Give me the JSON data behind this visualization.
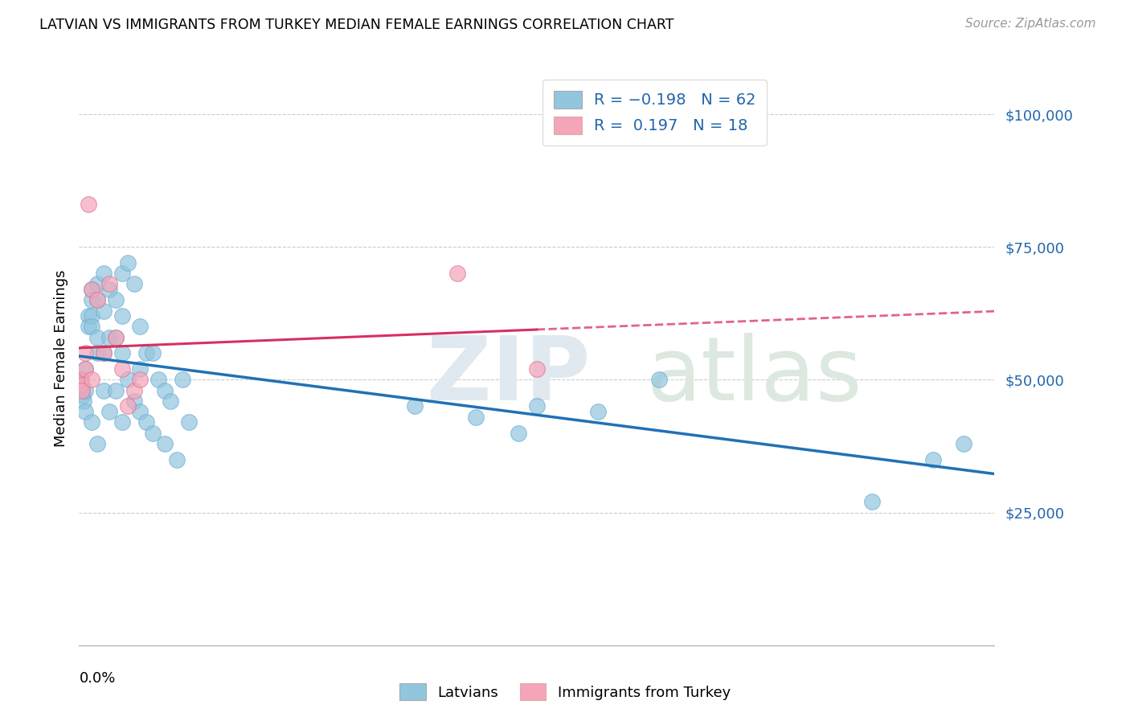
{
  "title": "LATVIAN VS IMMIGRANTS FROM TURKEY MEDIAN FEMALE EARNINGS CORRELATION CHART",
  "source": "Source: ZipAtlas.com",
  "ylabel": "Median Female Earnings",
  "y_ticks": [
    25000,
    50000,
    75000,
    100000
  ],
  "y_tick_labels": [
    "$25,000",
    "$50,000",
    "$75,000",
    "$100,000"
  ],
  "x_min": 0.0,
  "x_max": 0.15,
  "y_min": 0,
  "y_max": 108000,
  "latvian_color": "#92c5de",
  "latvian_edge": "#6baed6",
  "turkey_color": "#f4a5b8",
  "turkey_edge": "#e07090",
  "latvian_line_color": "#2171b5",
  "turkey_line_color": "#d63060",
  "latvian_R": -0.198,
  "latvian_N": 62,
  "turkey_R": 0.197,
  "turkey_N": 18,
  "legend_label_1": "Latvians",
  "legend_label_2": "Immigrants from Turkey",
  "latvian_x": [
    0.0002,
    0.0003,
    0.0004,
    0.0005,
    0.0006,
    0.0008,
    0.001,
    0.001,
    0.001,
    0.0015,
    0.0015,
    0.002,
    0.002,
    0.002,
    0.002,
    0.002,
    0.003,
    0.003,
    0.003,
    0.003,
    0.003,
    0.004,
    0.004,
    0.004,
    0.004,
    0.005,
    0.005,
    0.005,
    0.006,
    0.006,
    0.006,
    0.007,
    0.007,
    0.007,
    0.007,
    0.008,
    0.008,
    0.009,
    0.009,
    0.01,
    0.01,
    0.01,
    0.011,
    0.011,
    0.012,
    0.012,
    0.013,
    0.014,
    0.014,
    0.015,
    0.016,
    0.017,
    0.018,
    0.055,
    0.065,
    0.072,
    0.075,
    0.085,
    0.095,
    0.13,
    0.14,
    0.145
  ],
  "latvian_y": [
    50000,
    50000,
    49000,
    48000,
    47000,
    46000,
    52000,
    48000,
    44000,
    62000,
    60000,
    67000,
    65000,
    62000,
    60000,
    42000,
    68000,
    65000,
    58000,
    55000,
    38000,
    70000,
    63000,
    55000,
    48000,
    67000,
    58000,
    44000,
    65000,
    58000,
    48000,
    70000,
    62000,
    55000,
    42000,
    72000,
    50000,
    68000,
    46000,
    60000,
    52000,
    44000,
    55000,
    42000,
    55000,
    40000,
    50000,
    48000,
    38000,
    46000,
    35000,
    50000,
    42000,
    45000,
    43000,
    40000,
    45000,
    44000,
    50000,
    27000,
    35000,
    38000
  ],
  "turkey_x": [
    0.0002,
    0.0003,
    0.0005,
    0.001,
    0.001,
    0.0015,
    0.002,
    0.002,
    0.003,
    0.004,
    0.005,
    0.006,
    0.007,
    0.008,
    0.009,
    0.01,
    0.062,
    0.075
  ],
  "turkey_y": [
    50000,
    49000,
    48000,
    55000,
    52000,
    83000,
    67000,
    50000,
    65000,
    55000,
    68000,
    58000,
    52000,
    45000,
    48000,
    50000,
    70000,
    52000
  ]
}
